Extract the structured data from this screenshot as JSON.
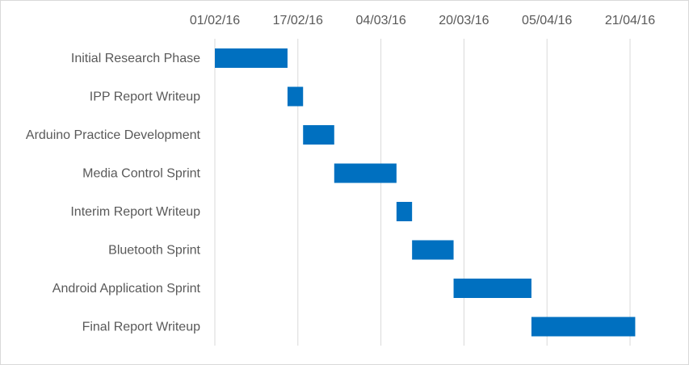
{
  "chart_data": {
    "type": "bar",
    "orientation": "horizontal-gantt",
    "title": "",
    "xlabel": "",
    "ylabel": "",
    "x_ticks": [
      "01/02/16",
      "17/02/16",
      "04/03/16",
      "20/03/16",
      "05/04/16",
      "21/04/16"
    ],
    "grid": true,
    "legend": "none",
    "bar_color": "#0070c0",
    "grid_color": "#d9d9d9",
    "tasks": [
      {
        "label": "Initial Research Phase",
        "start": "2016-02-01",
        "end": "2016-02-15"
      },
      {
        "label": "IPP Report Writeup",
        "start": "2016-02-15",
        "end": "2016-02-18"
      },
      {
        "label": "Arduino Practice Development",
        "start": "2016-02-18",
        "end": "2016-02-24"
      },
      {
        "label": "Media Control Sprint",
        "start": "2016-02-24",
        "end": "2016-03-07"
      },
      {
        "label": "Interim Report Writeup",
        "start": "2016-03-07",
        "end": "2016-03-10"
      },
      {
        "label": "Bluetooth Sprint",
        "start": "2016-03-10",
        "end": "2016-03-18"
      },
      {
        "label": "Android Application Sprint",
        "start": "2016-03-18",
        "end": "2016-04-02"
      },
      {
        "label": "Final Report Writeup",
        "start": "2016-04-02",
        "end": "2016-04-22"
      }
    ]
  }
}
